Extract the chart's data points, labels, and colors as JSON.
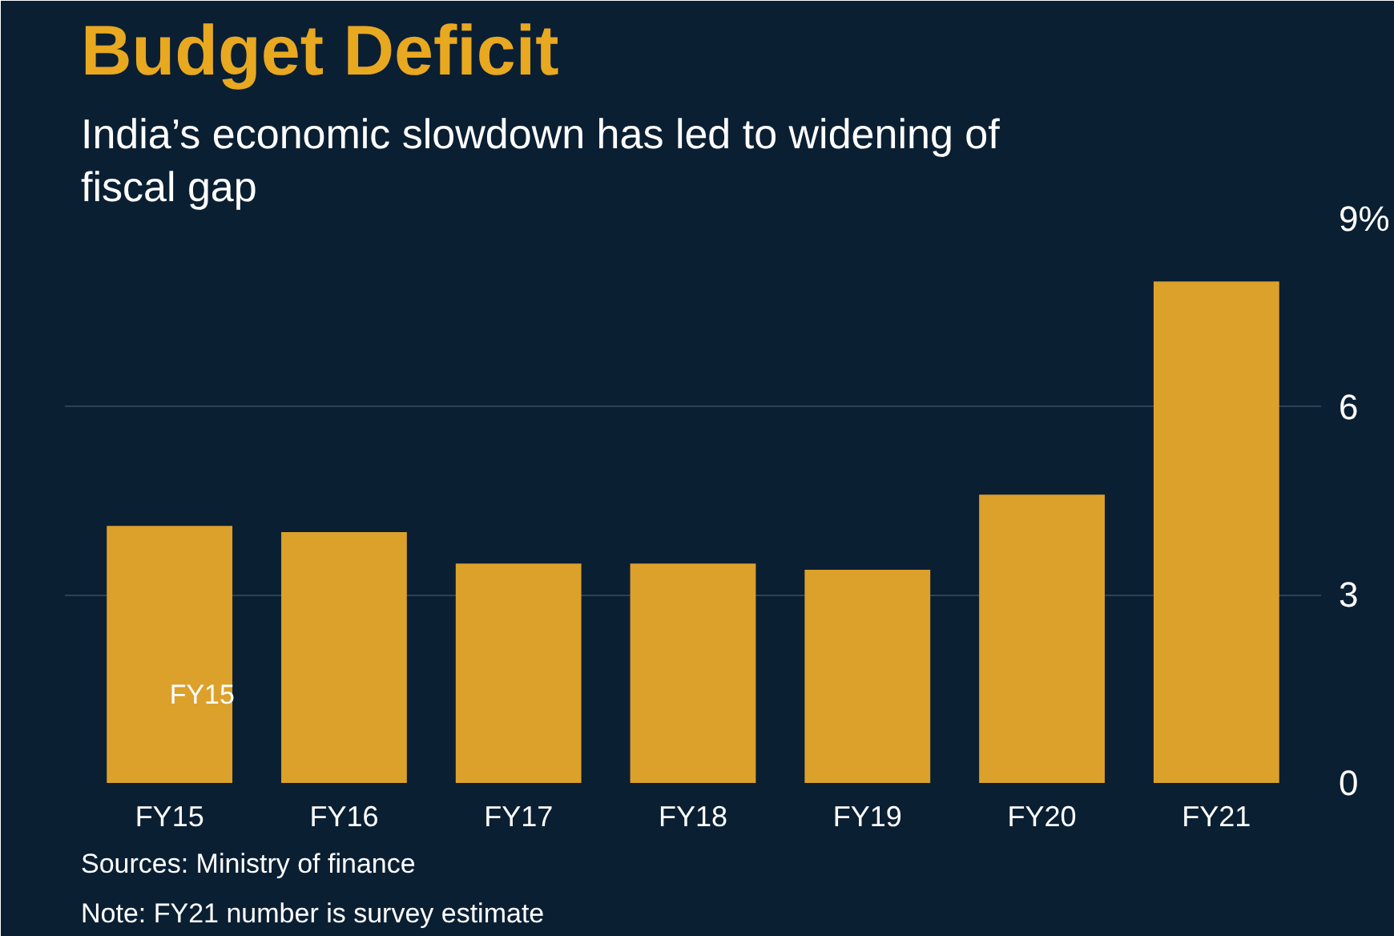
{
  "chart_data": {
    "type": "bar",
    "title": "Budget Deficit",
    "subtitle": "India’s economic slowdown has led to widening of fiscal gap",
    "categories": [
      "FY15",
      "FY16",
      "FY17",
      "FY18",
      "FY19",
      "FY20",
      "FY21"
    ],
    "values": [
      4.1,
      4.0,
      3.5,
      3.5,
      3.4,
      4.6,
      8.0
    ],
    "color": "#dca12a",
    "ylim": [
      0,
      9
    ],
    "yticks": [
      0,
      3,
      6,
      {
        "value": 9,
        "label": "9%"
      }
    ],
    "grid": "y",
    "annotations": [
      "FY15",
      "Sources: Ministry of finance",
      "Note: FY21 number is survey estimate"
    ]
  }
}
